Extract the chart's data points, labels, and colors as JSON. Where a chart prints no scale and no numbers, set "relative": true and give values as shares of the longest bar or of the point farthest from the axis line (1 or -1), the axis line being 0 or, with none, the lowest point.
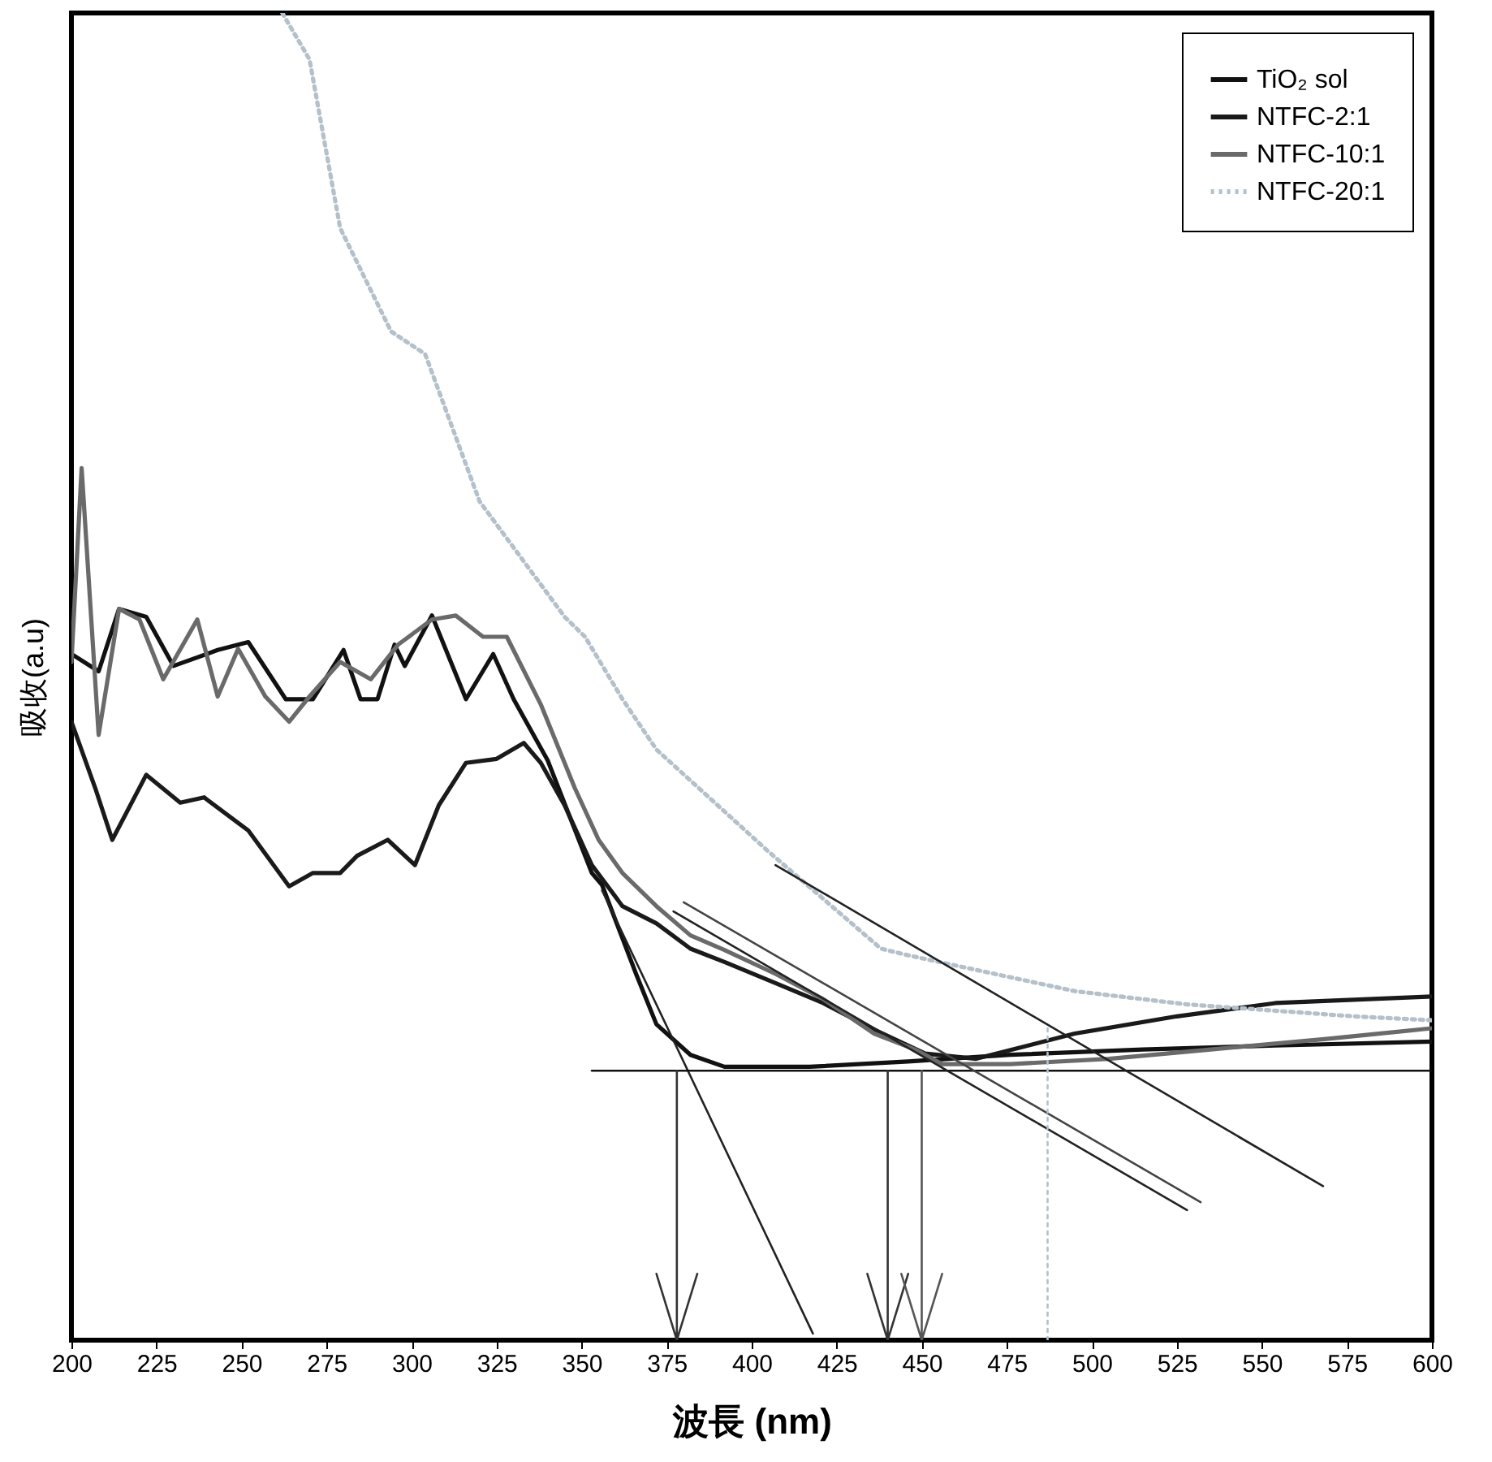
{
  "chart_data": {
    "type": "line",
    "relative": true,
    "xlabel": "波長 (nm)",
    "ylabel": "吸收(a.u)",
    "xlim": [
      200,
      600
    ],
    "xticks": [
      200,
      225,
      250,
      275,
      300,
      325,
      350,
      375,
      400,
      425,
      450,
      475,
      500,
      525,
      550,
      575,
      600
    ],
    "grid": false,
    "legend": "top right",
    "marker": "none",
    "line_style": "solid",
    "series": [
      {
        "name": "TiO₂ sol",
        "color": "#111111",
        "x": [
          200,
          208,
          214,
          222,
          230,
          243,
          252,
          263,
          271,
          280,
          285,
          290,
          295,
          298,
          306,
          316,
          324,
          330,
          340,
          353,
          356,
          366,
          372,
          382,
          392,
          417,
          446,
          476,
          515,
          554,
          600
        ],
        "values": [
          0.517,
          0.504,
          0.551,
          0.545,
          0.508,
          0.52,
          0.526,
          0.483,
          0.483,
          0.52,
          0.483,
          0.483,
          0.524,
          0.508,
          0.546,
          0.483,
          0.517,
          0.483,
          0.437,
          0.352,
          0.343,
          0.276,
          0.238,
          0.215,
          0.206,
          0.206,
          0.21,
          0.215,
          0.219,
          0.222,
          0.225
        ]
      },
      {
        "name": "NTFC-2:1",
        "color": "#1a1a1a",
        "x": [
          200,
          207,
          212,
          222,
          232,
          239,
          252,
          264,
          271,
          279,
          284,
          293,
          301,
          308,
          316,
          325,
          333,
          338,
          345,
          353,
          362,
          372,
          382,
          392,
          407,
          421,
          436,
          451,
          466,
          495,
          525,
          554,
          600
        ],
        "values": [
          0.466,
          0.416,
          0.377,
          0.426,
          0.405,
          0.409,
          0.384,
          0.342,
          0.352,
          0.352,
          0.365,
          0.377,
          0.358,
          0.403,
          0.435,
          0.438,
          0.45,
          0.435,
          0.403,
          0.358,
          0.327,
          0.314,
          0.295,
          0.285,
          0.269,
          0.254,
          0.234,
          0.216,
          0.212,
          0.231,
          0.244,
          0.254,
          0.259
        ]
      },
      {
        "name": "NTFC-10:1",
        "color": "#6a6a6a",
        "x": [
          200,
          203,
          208,
          214,
          220,
          227,
          237,
          243,
          249,
          257,
          264,
          270,
          279,
          288,
          296,
          306,
          313,
          321,
          328,
          338,
          348,
          355,
          362,
          372,
          382,
          392,
          407,
          421,
          436,
          448,
          456,
          476,
          505,
          535,
          569,
          600
        ],
        "values": [
          0.511,
          0.657,
          0.456,
          0.551,
          0.543,
          0.498,
          0.543,
          0.485,
          0.521,
          0.485,
          0.466,
          0.485,
          0.511,
          0.498,
          0.524,
          0.543,
          0.546,
          0.53,
          0.53,
          0.479,
          0.416,
          0.377,
          0.352,
          0.327,
          0.305,
          0.294,
          0.276,
          0.257,
          0.231,
          0.219,
          0.208,
          0.208,
          0.212,
          0.219,
          0.227,
          0.235
        ]
      },
      {
        "name": "NTFC-20:1",
        "color": "#b4c0ca",
        "line_style": "dotted",
        "x": [
          262,
          270,
          279,
          294,
          304,
          320,
          345,
          351,
          362,
          372,
          405,
          438,
          446,
          495,
          528,
          577,
          600
        ],
        "values": [
          1.0,
          0.965,
          0.838,
          0.76,
          0.743,
          0.632,
          0.545,
          0.53,
          0.483,
          0.445,
          0.368,
          0.295,
          0.29,
          0.263,
          0.253,
          0.244,
          0.241
        ]
      },
      {
        "color": "#222222",
        "x": [
          356,
          418
        ],
        "values": [
          0.339,
          0.005
        ]
      },
      {
        "color": "#111111",
        "x": [
          353,
          600
        ],
        "values": [
          0.203,
          0.203
        ]
      },
      {
        "color": "#222222",
        "x": [
          377,
          528
        ],
        "values": [
          0.323,
          0.098
        ]
      },
      {
        "color": "#444444",
        "x": [
          380,
          532
        ],
        "values": [
          0.33,
          0.104
        ]
      },
      {
        "color": "#222222",
        "x": [
          407,
          568
        ],
        "values": [
          0.358,
          0.116
        ]
      },
      {
        "color": "#333333",
        "x": [
          378,
          378,
          372,
          378,
          384
        ],
        "values": [
          0.203,
          0,
          0.05,
          0,
          0.05
        ]
      },
      {
        "color": "#333333",
        "x": [
          440,
          440,
          434,
          440,
          446
        ],
        "values": [
          0.203,
          0,
          0.05,
          0,
          0.05
        ]
      },
      {
        "color": "#555555",
        "x": [
          450,
          450,
          444,
          450,
          456
        ],
        "values": [
          0.203,
          0,
          0.05,
          0,
          0.05
        ]
      },
      {
        "color": "#b4c0ca",
        "line_style": "dotted",
        "x": [
          487,
          487
        ],
        "values": [
          0.235,
          0
        ]
      }
    ]
  }
}
